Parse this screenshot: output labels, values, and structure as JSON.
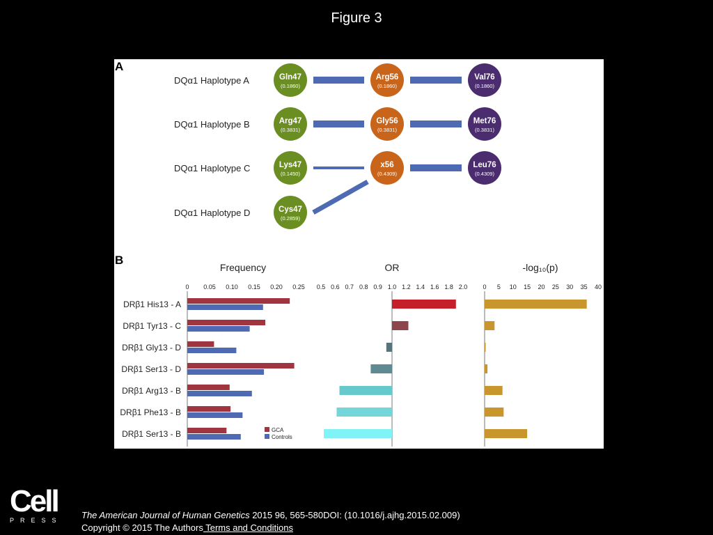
{
  "figure_title": "Figure 3",
  "panel_a": {
    "label": "A",
    "rows": [
      {
        "label": "DQα1 Haplotype A",
        "nodes": [
          {
            "name": "Gln47",
            "freq": "(0.1860)",
            "color": "#6b8e23"
          },
          {
            "name": "Arg56",
            "freq": "(0.1860)",
            "color": "#c9651b"
          },
          {
            "name": "Val76",
            "freq": "(0.1860)",
            "color": "#4b2c6f"
          }
        ],
        "links": [
          "thick",
          "thick"
        ]
      },
      {
        "label": "DQα1 Haplotype B",
        "nodes": [
          {
            "name": "Arg47",
            "freq": "(0.3831)",
            "color": "#6b8e23"
          },
          {
            "name": "Gly56",
            "freq": "(0.3831)",
            "color": "#c9651b"
          },
          {
            "name": "Met76",
            "freq": "(0.3831)",
            "color": "#4b2c6f"
          }
        ],
        "links": [
          "thick",
          "thick"
        ]
      },
      {
        "label": "DQα1 Haplotype C",
        "nodes": [
          {
            "name": "Lys47",
            "freq": "(0.1450)",
            "color": "#6b8e23"
          },
          {
            "name": "x56",
            "freq": "(0.4309)",
            "color": "#c9651b"
          },
          {
            "name": "Leu76",
            "freq": "(0.4309)",
            "color": "#4b2c6f"
          }
        ],
        "links": [
          "thin",
          "thick"
        ]
      },
      {
        "label": "DQα1 Haplotype D",
        "nodes": [
          {
            "name": "Cys47",
            "freq": "(0.2859)",
            "color": "#6b8e23"
          }
        ],
        "links": [
          "diagonal-to-x56"
        ]
      }
    ],
    "link_color": "#4e6ab3"
  },
  "panel_b_label": "B",
  "chart_data": [
    {
      "type": "bar",
      "orientation": "horizontal",
      "title": "Frequency",
      "categories": [
        "DRβ1 His13 - A",
        "DRβ1 Tyr13 - C",
        "DRβ1 Gly13 - D",
        "DRβ1 Ser13 - D",
        "DRβ1 Arg13 - B",
        "DRβ1 Phe13 - B",
        "DRβ1 Ser13 - B"
      ],
      "series": [
        {
          "name": "GCA",
          "values": [
            0.23,
            0.175,
            0.06,
            0.24,
            0.095,
            0.097,
            0.088
          ],
          "color": "#a0353f"
        },
        {
          "name": "Controls",
          "values": [
            0.17,
            0.14,
            0.11,
            0.172,
            0.145,
            0.124,
            0.12
          ],
          "color": "#4e6ab3"
        }
      ],
      "xlim": [
        0,
        0.25
      ],
      "xticks": [
        "0",
        "0.05",
        "0.10",
        "0.15",
        "0.20",
        "0.25"
      ],
      "legend": "bottom-right"
    },
    {
      "type": "bar",
      "orientation": "horizontal",
      "title": "OR",
      "categories": [
        "DRβ1 His13 - A",
        "DRβ1 Tyr13 - C",
        "DRβ1 Gly13 - D",
        "DRβ1 Ser13 - D",
        "DRβ1 Arg13 - B",
        "DRβ1 Phe13 - B",
        "DRβ1 Ser13 - B"
      ],
      "baseline": 1.0,
      "values": [
        1.9,
        1.23,
        0.96,
        0.85,
        0.63,
        0.61,
        0.52
      ],
      "colors": [
        "#c5202a",
        "#8e454c",
        "#58737a",
        "#5e8a92",
        "#66c9cc",
        "#75d6d9",
        "#7ff3f6"
      ],
      "xlim": [
        0.5,
        2.0
      ],
      "xticks": [
        "0.5",
        "0.6",
        "0.7",
        "0.8",
        "0.9",
        "1.0",
        "1.2",
        "1.4",
        "1.6",
        "1.8",
        "2.0"
      ]
    },
    {
      "type": "bar",
      "orientation": "horizontal",
      "title": "-log₁₀(p)",
      "categories": [
        "DRβ1 His13 - A",
        "DRβ1 Tyr13 - C",
        "DRβ1 Gly13 - D",
        "DRβ1 Ser13 - D",
        "DRβ1 Arg13 - B",
        "DRβ1 Phe13 - B",
        "DRβ1 Ser13 - B"
      ],
      "values": [
        36,
        3.5,
        0.2,
        1.0,
        6.3,
        6.7,
        15
      ],
      "color": "#c9962d",
      "xlim": [
        0,
        40
      ],
      "xticks": [
        "0",
        "5",
        "10",
        "15",
        "20",
        "25",
        "30",
        "35",
        "40"
      ]
    }
  ],
  "logo": {
    "main": "Cell",
    "sub": "PRESS"
  },
  "citation": {
    "journal": "The American Journal of Human Genetics",
    "details": " 2015 96, 565-580DOI: (10.1016/j.ajhg.2015.02.009)",
    "copyright": "Copyright © 2015 The Authors",
    "terms_link": " Terms and Conditions"
  }
}
